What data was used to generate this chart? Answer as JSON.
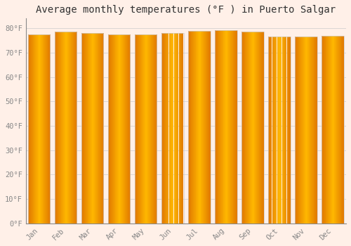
{
  "title": "Average monthly temperatures (°F ) in Puerto Salgar",
  "months": [
    "Jan",
    "Feb",
    "Mar",
    "Apr",
    "May",
    "Jun",
    "Jul",
    "Aug",
    "Sep",
    "Oct",
    "Nov",
    "Dec"
  ],
  "values": [
    77.5,
    78.5,
    78.1,
    77.4,
    77.5,
    78.1,
    79.0,
    79.3,
    78.5,
    76.6,
    76.5,
    76.8
  ],
  "bar_color_center": "#FFB800",
  "bar_color_edge": "#E07800",
  "bar_edge_color": "#CCCCCC",
  "background_color": "#FFF0E8",
  "grid_color": "#CCCCCC",
  "ylim": [
    0,
    84
  ],
  "yticks": [
    0,
    10,
    20,
    30,
    40,
    50,
    60,
    70,
    80
  ],
  "ytick_labels": [
    "0°F",
    "10°F",
    "20°F",
    "30°F",
    "40°F",
    "50°F",
    "60°F",
    "70°F",
    "80°F"
  ],
  "title_fontsize": 10,
  "tick_fontsize": 7.5,
  "font_family": "monospace"
}
